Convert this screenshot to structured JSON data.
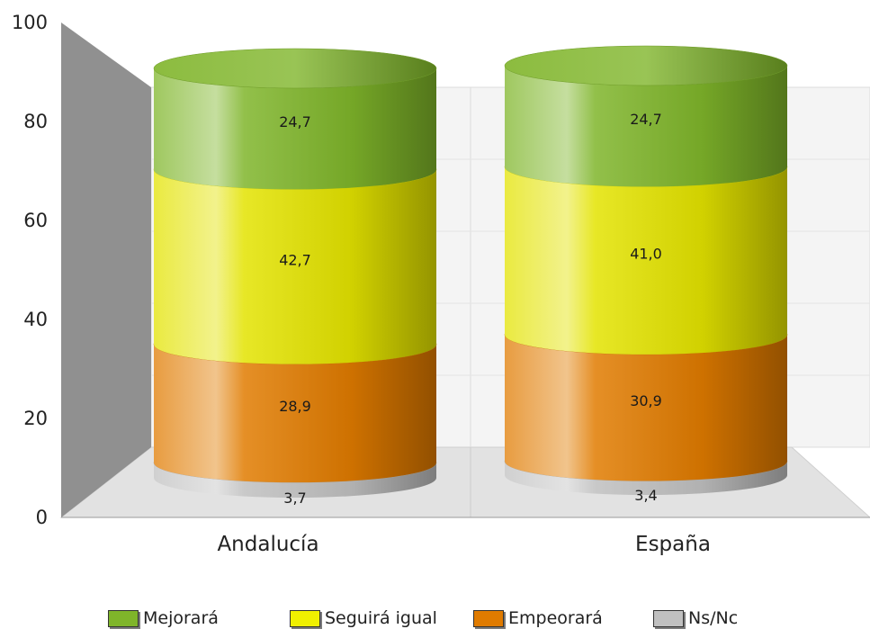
{
  "chart_data": {
    "type": "bar",
    "stacked": true,
    "style": "3d-cylinder",
    "categories": [
      "Andalucía",
      "España"
    ],
    "series": [
      {
        "name": "Ns/Nc",
        "color": "#c0c0c0",
        "values": [
          3.7,
          3.4
        ],
        "labels": [
          "3,7",
          "3,4"
        ]
      },
      {
        "name": "Empeorará",
        "color": "#e07b00",
        "values": [
          28.9,
          30.9
        ],
        "labels": [
          "28,9",
          "30,9"
        ]
      },
      {
        "name": "Seguirá igual",
        "color": "#e3e300",
        "values": [
          42.7,
          41.0
        ],
        "labels": [
          "42,7",
          "41,0"
        ]
      },
      {
        "name": "Mejorará",
        "color": "#7fb52a",
        "values": [
          24.7,
          24.7
        ],
        "labels": [
          "24,7",
          "24,7"
        ]
      }
    ],
    "ylim": [
      0,
      100
    ],
    "yticks": [
      "0",
      "20",
      "40",
      "60",
      "80",
      "100"
    ],
    "grid": true,
    "legend_position": "bottom"
  },
  "legend": {
    "items": [
      {
        "label": "Mejorará",
        "color": "#7fb52a"
      },
      {
        "label": "Seguirá igual",
        "color": "#f0f000"
      },
      {
        "label": "Empeorará",
        "color": "#e07b00"
      },
      {
        "label": "Ns/Nc",
        "color": "#c0c0c0"
      }
    ]
  }
}
